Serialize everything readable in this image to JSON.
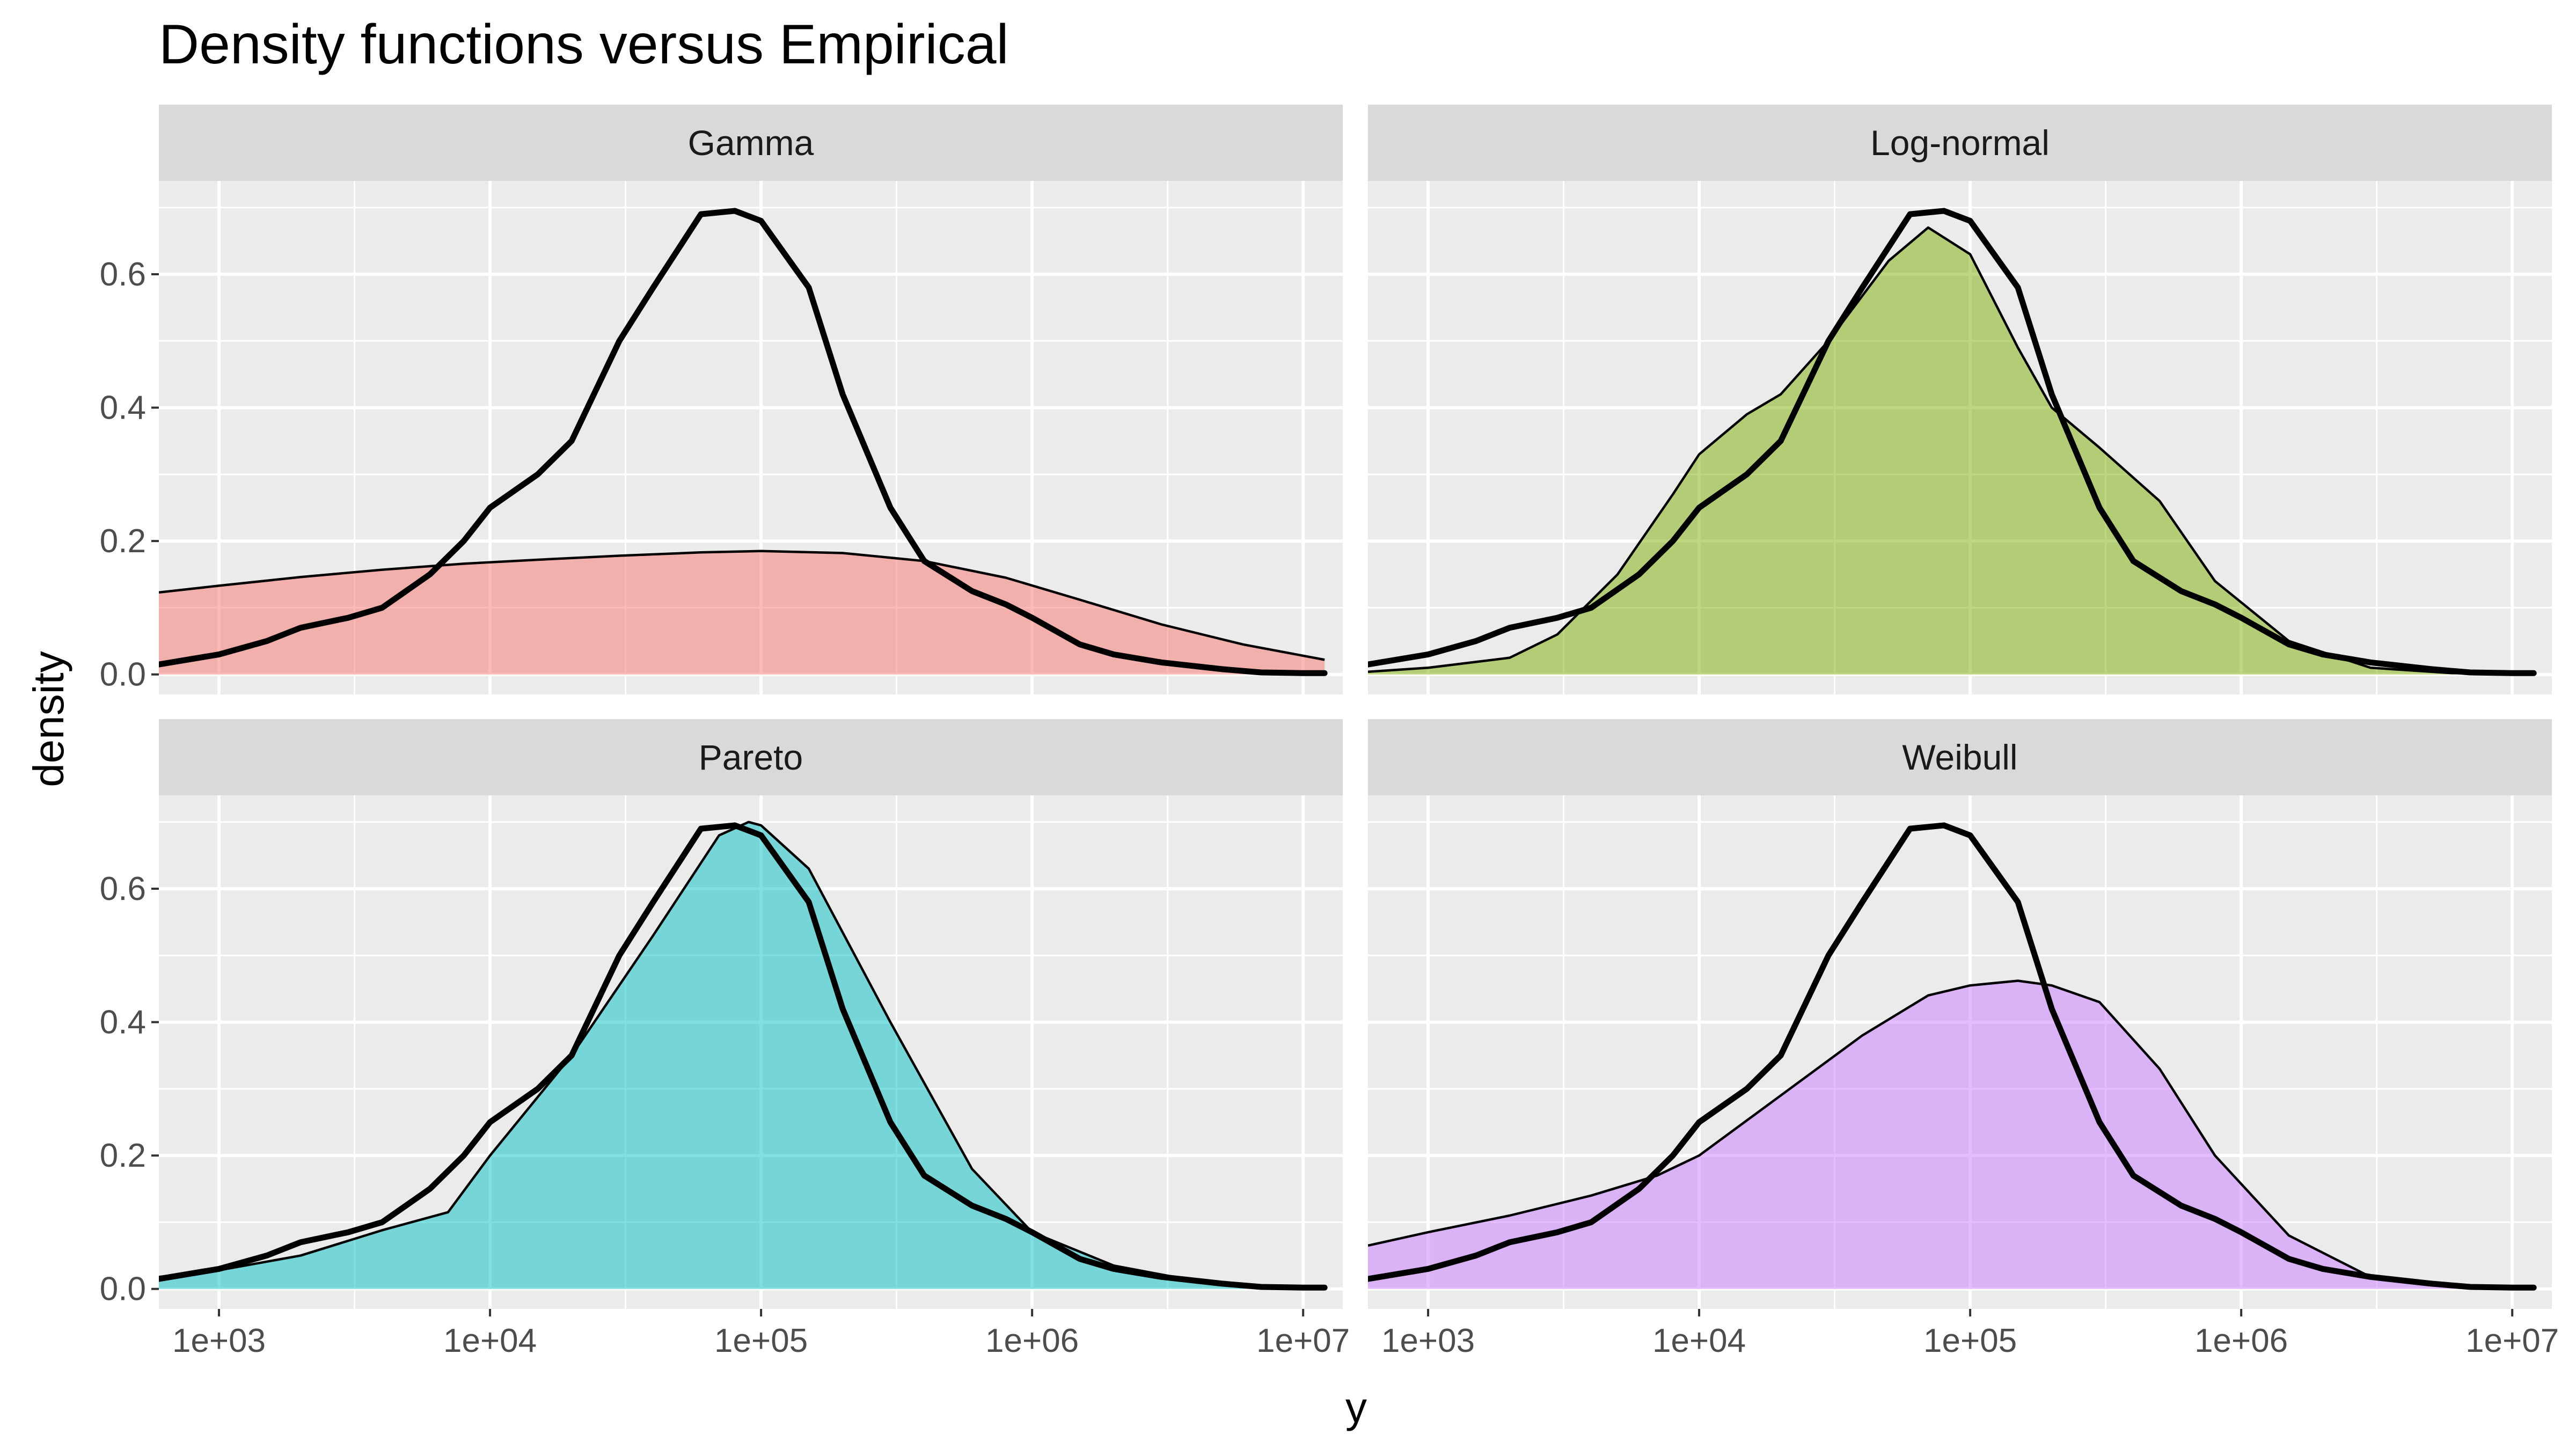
{
  "chart_data": {
    "type": "area",
    "title": "Density functions versus Empirical",
    "xlabel": "y",
    "ylabel": "density",
    "x_scale": "log10",
    "xlim": [
      600,
      14000000
    ],
    "ylim": [
      -0.03,
      0.74
    ],
    "x_ticks": [
      1000,
      10000,
      100000,
      1000000,
      10000000
    ],
    "x_tick_labels": [
      "1e+03",
      "1e+04",
      "1e+05",
      "1e+06",
      "1e+07"
    ],
    "y_ticks": [
      0.0,
      0.2,
      0.4,
      0.6
    ],
    "y_tick_labels": [
      "0.0",
      "0.2",
      "0.4",
      "0.6"
    ],
    "grid": true,
    "empirical": {
      "x": [
        600,
        1000,
        1500,
        2000,
        3000,
        4000,
        6000,
        8000,
        10000,
        15000,
        20000,
        30000,
        40000,
        60000,
        80000,
        100000,
        150000,
        200000,
        300000,
        400000,
        600000,
        800000,
        1000000,
        1500000,
        2000000,
        3000000,
        5000000,
        7000000,
        10000000,
        12000000
      ],
      "y": [
        0.015,
        0.03,
        0.05,
        0.07,
        0.085,
        0.1,
        0.15,
        0.2,
        0.25,
        0.3,
        0.35,
        0.5,
        0.58,
        0.69,
        0.695,
        0.68,
        0.58,
        0.42,
        0.25,
        0.17,
        0.125,
        0.105,
        0.085,
        0.045,
        0.03,
        0.018,
        0.008,
        0.003,
        0.002,
        0.002
      ]
    },
    "panels": [
      {
        "name": "Gamma",
        "color": "#F8766D",
        "x": [
          600,
          1000,
          2000,
          4000,
          8000,
          15000,
          30000,
          60000,
          100000,
          200000,
          400000,
          800000,
          1500000,
          3000000,
          6000000,
          12000000
        ],
        "y": [
          0.123,
          0.133,
          0.146,
          0.157,
          0.166,
          0.172,
          0.178,
          0.183,
          0.185,
          0.182,
          0.17,
          0.145,
          0.112,
          0.075,
          0.045,
          0.022
        ]
      },
      {
        "name": "Log-normal",
        "color": "#7CAE00",
        "x": [
          600,
          1000,
          2000,
          3000,
          5000,
          8000,
          10000,
          15000,
          20000,
          30000,
          50000,
          70000,
          100000,
          150000,
          200000,
          300000,
          500000,
          800000,
          1500000,
          3000000,
          6000000,
          12000000
        ],
        "y": [
          0.004,
          0.01,
          0.025,
          0.06,
          0.15,
          0.27,
          0.33,
          0.39,
          0.42,
          0.5,
          0.62,
          0.67,
          0.63,
          0.49,
          0.4,
          0.34,
          0.26,
          0.14,
          0.05,
          0.01,
          0.002,
          0.0
        ]
      },
      {
        "name": "Pareto",
        "color": "#00BFC4",
        "x": [
          600,
          1000,
          2000,
          4000,
          7000,
          10000,
          20000,
          40000,
          70000,
          90000,
          100000,
          150000,
          300000,
          600000,
          1000000,
          2000000,
          4000000,
          8000000,
          12000000
        ],
        "y": [
          0.018,
          0.028,
          0.05,
          0.088,
          0.115,
          0.2,
          0.35,
          0.53,
          0.68,
          0.7,
          0.695,
          0.63,
          0.4,
          0.18,
          0.085,
          0.035,
          0.012,
          0.003,
          0.001
        ]
      },
      {
        "name": "Weibull",
        "color": "#C77CFF",
        "x": [
          600,
          1000,
          2000,
          4000,
          7000,
          10000,
          20000,
          40000,
          70000,
          100000,
          150000,
          200000,
          300000,
          500000,
          800000,
          1500000,
          3000000,
          6000000,
          12000000
        ],
        "y": [
          0.065,
          0.085,
          0.11,
          0.14,
          0.17,
          0.2,
          0.29,
          0.38,
          0.44,
          0.455,
          0.462,
          0.455,
          0.43,
          0.33,
          0.2,
          0.08,
          0.018,
          0.003,
          0.0
        ]
      }
    ]
  }
}
